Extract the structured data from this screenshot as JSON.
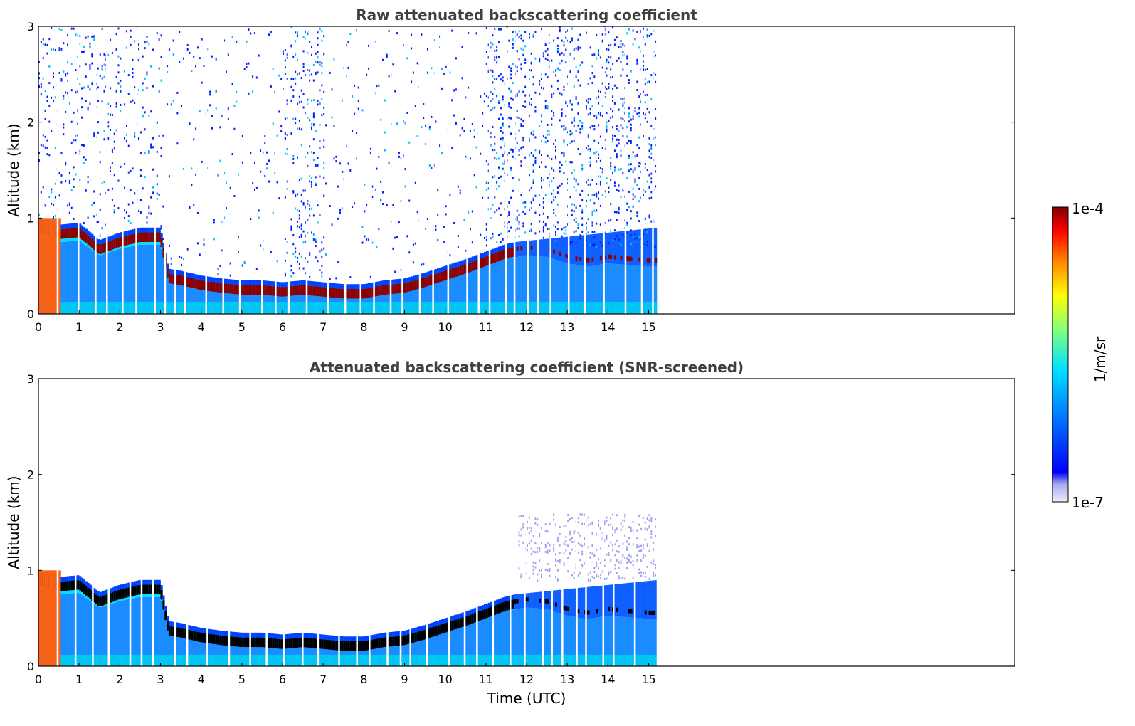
{
  "chart_data": [
    {
      "type": "heatmap",
      "title": "Raw attenuated backscattering coefficient",
      "xlabel": "",
      "ylabel": "Altitude (km)",
      "xlim": [
        0,
        24
      ],
      "ylim": [
        0,
        3
      ],
      "xticks": [
        0,
        1,
        2,
        3,
        4,
        5,
        6,
        7,
        8,
        9,
        10,
        11,
        12,
        13,
        14,
        15
      ],
      "yticks": [
        0,
        1,
        2,
        3
      ],
      "xtick_labels": [
        "0",
        "1",
        "2",
        "3",
        "4",
        "5",
        "6",
        "7",
        "8",
        "9",
        "10",
        "11",
        "12",
        "13",
        "14",
        "15"
      ],
      "ytick_labels": [
        "0",
        "1",
        "2",
        "3"
      ],
      "data_end_time_utc": 15.2,
      "cloud_layer_altitude_km": {
        "time": [
          0,
          0.5,
          1,
          1.5,
          2,
          2.5,
          3,
          3.2,
          3.5,
          4,
          4.5,
          5,
          5.5,
          6,
          6.5,
          7,
          7.5,
          8,
          8.5,
          9,
          9.5,
          10,
          10.5,
          11,
          11.5,
          12,
          12.5,
          13,
          13.5,
          14,
          14.5,
          15
        ],
        "altitude": [
          0.95,
          0.88,
          0.9,
          0.72,
          0.8,
          0.85,
          0.85,
          0.42,
          0.4,
          0.35,
          0.32,
          0.3,
          0.3,
          0.28,
          0.3,
          0.28,
          0.26,
          0.26,
          0.3,
          0.32,
          0.38,
          0.45,
          0.52,
          0.6,
          0.68,
          0.72,
          0.7,
          0.62,
          0.58,
          0.62,
          0.6,
          0.58
        ]
      }
    },
    {
      "type": "heatmap",
      "title": "Attenuated backscattering coefficient (SNR-screened)",
      "xlabel": "Time (UTC)",
      "ylabel": "Altitude (km)",
      "xlim": [
        0,
        24
      ],
      "ylim": [
        0,
        3
      ],
      "xticks": [
        0,
        1,
        2,
        3,
        4,
        5,
        6,
        7,
        8,
        9,
        10,
        11,
        12,
        13,
        14,
        15
      ],
      "yticks": [
        0,
        1,
        2,
        3
      ],
      "xtick_labels": [
        "0",
        "1",
        "2",
        "3",
        "4",
        "5",
        "6",
        "7",
        "8",
        "9",
        "10",
        "11",
        "12",
        "13",
        "14",
        "15"
      ],
      "ytick_labels": [
        "0",
        "1",
        "2",
        "3"
      ],
      "data_end_time_utc": 15.2
    }
  ],
  "colorbar": {
    "label": "1/m/sr",
    "max_label": "1e-4",
    "min_label": "1e-7",
    "colormap": "jet",
    "colors": [
      "#e8e8f8",
      "#b0b0f0",
      "#0000ff",
      "#0080ff",
      "#00e0ff",
      "#80ff80",
      "#ffff00",
      "#ff8000",
      "#ff0000",
      "#800000"
    ]
  }
}
